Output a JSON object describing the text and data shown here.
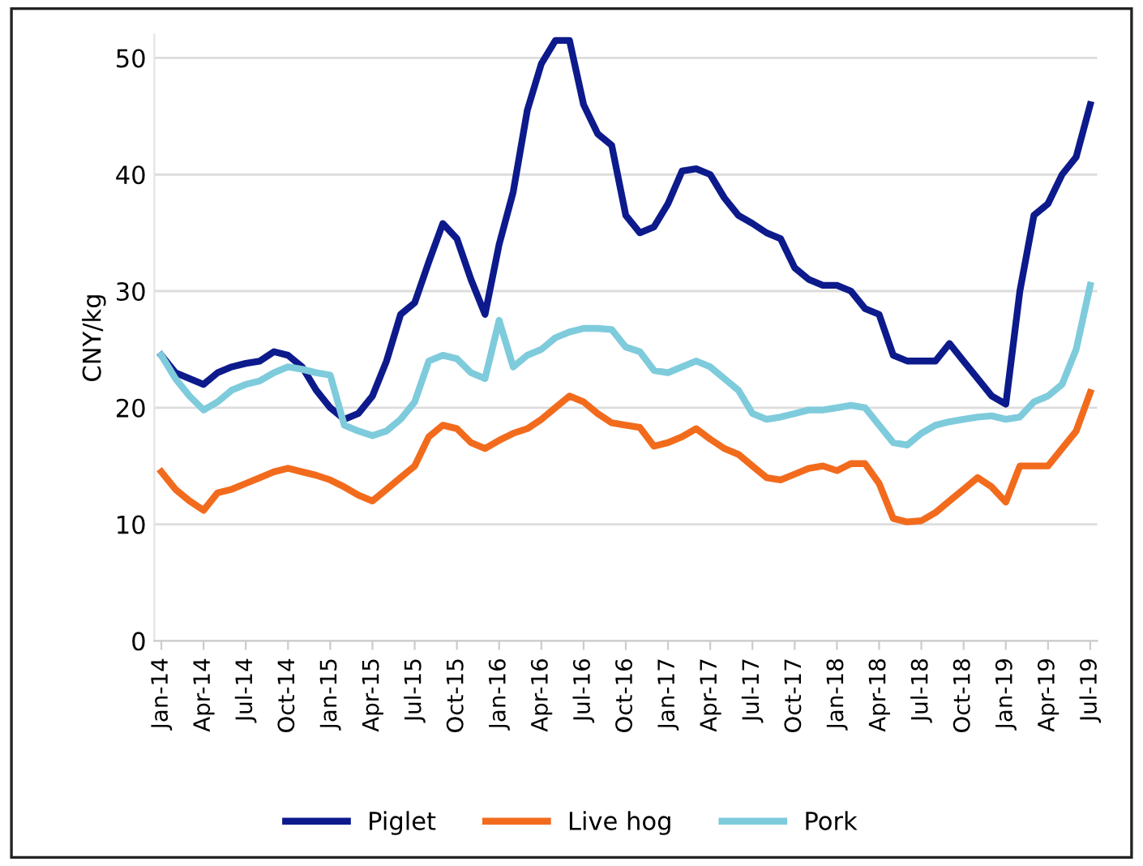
{
  "chart_data": {
    "type": "line",
    "ylabel": "CNY/kg",
    "categories": [
      "Jan-14",
      null,
      null,
      "Apr-14",
      null,
      null,
      "Jul-14",
      null,
      null,
      "Oct-14",
      null,
      null,
      "Jan-15",
      null,
      null,
      "Apr-15",
      null,
      null,
      "Jul-15",
      null,
      null,
      "Oct-15",
      null,
      null,
      "Jan-16",
      null,
      null,
      "Apr-16",
      null,
      null,
      "Jul-16",
      null,
      null,
      "Oct-16",
      null,
      null,
      "Jan-17",
      null,
      null,
      "Apr-17",
      null,
      null,
      "Jul-17",
      null,
      null,
      "Oct-17",
      null,
      null,
      "Jan-18",
      null,
      null,
      "Apr-18",
      null,
      null,
      "Jul-18",
      null,
      null,
      "Oct-18",
      null,
      null,
      "Jan-19",
      null,
      null,
      "Apr-19",
      null,
      null,
      "Jul-19"
    ],
    "series": [
      {
        "name": "Piglet",
        "color": "#0d1a8c",
        "values": [
          24.5,
          23,
          22.5,
          22,
          23,
          23.5,
          23.8,
          24,
          24.8,
          24.5,
          23.5,
          21.5,
          20,
          19,
          19.5,
          21,
          24,
          28,
          29,
          32.5,
          35.8,
          34.5,
          31,
          28,
          34,
          38.5,
          45.5,
          49.5,
          51.5,
          51.5,
          46,
          43.5,
          42.5,
          36.5,
          35,
          35.5,
          37.5,
          40.3,
          40.5,
          40,
          38,
          36.5,
          35.8,
          35,
          34.5,
          32,
          31,
          30.5,
          30.5,
          30,
          28.5,
          28,
          24.5,
          24,
          24,
          24,
          25.5,
          24,
          22.5,
          21,
          20.3,
          30,
          36.5,
          37.5,
          40,
          41.5,
          46
        ]
      },
      {
        "name": "Live hog",
        "color": "#f26b1d",
        "values": [
          14.5,
          13,
          12,
          11.2,
          12.7,
          13,
          13.5,
          14,
          14.5,
          14.8,
          14.5,
          14.2,
          13.8,
          13.2,
          12.5,
          12,
          13,
          14,
          15,
          17.5,
          18.5,
          18.2,
          17,
          16.5,
          17.2,
          17.8,
          18.2,
          19,
          20,
          21,
          20.5,
          19.5,
          18.7,
          18.5,
          18.3,
          16.7,
          17,
          17.5,
          18.2,
          17.3,
          16.5,
          16,
          15,
          14,
          13.8,
          14.3,
          14.8,
          15,
          14.6,
          15.2,
          15.2,
          13.5,
          10.5,
          10.2,
          10.3,
          11,
          12,
          13,
          14,
          13.2,
          11.9,
          15,
          15,
          15,
          16.5,
          18,
          21.3
        ]
      },
      {
        "name": "Pork",
        "color": "#7ecbdc",
        "values": [
          24.5,
          22.5,
          21,
          19.8,
          20.5,
          21.5,
          22,
          22.3,
          23,
          23.5,
          23.3,
          23,
          22.8,
          18.5,
          18,
          17.6,
          18,
          19,
          20.5,
          24,
          24.5,
          24.2,
          23,
          22.5,
          27.5,
          23.5,
          24.5,
          25,
          26,
          26.5,
          26.8,
          26.8,
          26.7,
          25.2,
          24.8,
          23.2,
          23,
          23.5,
          24,
          23.5,
          22.5,
          21.5,
          19.5,
          19,
          19.2,
          19.5,
          19.8,
          19.8,
          20,
          20.2,
          20,
          18.5,
          17,
          16.8,
          17.8,
          18.5,
          18.8,
          19,
          19.2,
          19.3,
          19,
          19.2,
          20.5,
          21,
          22,
          25,
          30.5
        ]
      }
    ],
    "ylim": [
      0,
      52
    ],
    "yticks": [
      0,
      10,
      20,
      30,
      40,
      50
    ],
    "grid": "y",
    "legend": "bottom",
    "line_style": "solid",
    "marker": "none"
  }
}
